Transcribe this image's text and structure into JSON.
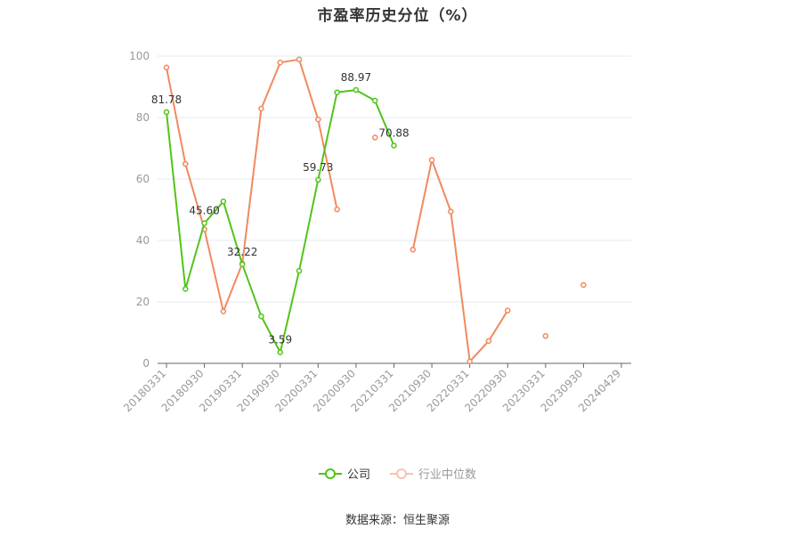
{
  "chart_data": {
    "type": "line",
    "title": "市盈率历史分位（%）",
    "xlabel": "",
    "ylabel": "",
    "ylim": [
      0,
      100
    ],
    "yticks": [
      0,
      20,
      40,
      60,
      80,
      100
    ],
    "x": [
      "20180331",
      "20180630",
      "20180930",
      "20181231",
      "20190331",
      "20190630",
      "20190930",
      "20191231",
      "20200331",
      "20200630",
      "20200930",
      "20201231",
      "20210331",
      "20210630",
      "20210930",
      "20211231",
      "20220331",
      "20220630",
      "20220930",
      "20221231",
      "20230331",
      "20230630",
      "20230930",
      "20231231",
      "20240429"
    ],
    "xtick_labels": [
      "20180331",
      "20180930",
      "20190331",
      "20190930",
      "20200331",
      "20200930",
      "20210331",
      "20210930",
      "20220331",
      "20220930",
      "20230331",
      "20230930",
      "20240429"
    ],
    "grid": true,
    "legend_position": "bottom",
    "series": [
      {
        "name": "公司",
        "color": "#52c41a",
        "values": [
          81.78,
          24.2,
          45.6,
          52.7,
          32.22,
          15.3,
          3.59,
          30.1,
          59.73,
          88.2,
          88.97,
          85.5,
          70.88,
          null,
          null,
          null,
          null,
          null,
          null,
          null,
          null,
          null,
          null,
          null,
          null
        ],
        "labels": {
          "0": "81.78",
          "2": "45.60",
          "4": "32.22",
          "6": "3.59",
          "8": "59.73",
          "10": "88.97",
          "12": "70.88"
        }
      },
      {
        "name": "行业中位数",
        "color": "#f08a5d",
        "values": [
          96.3,
          64.9,
          43.6,
          16.9,
          32.5,
          82.9,
          97.9,
          98.9,
          79.4,
          50.1,
          null,
          73.5,
          null,
          37.0,
          66.2,
          49.4,
          0.6,
          7.3,
          17.2,
          null,
          8.9,
          null,
          25.5,
          null,
          null
        ]
      }
    ]
  },
  "legend": {
    "company": "公司",
    "industry": "行业中位数"
  },
  "source": "数据来源：恒生聚源"
}
